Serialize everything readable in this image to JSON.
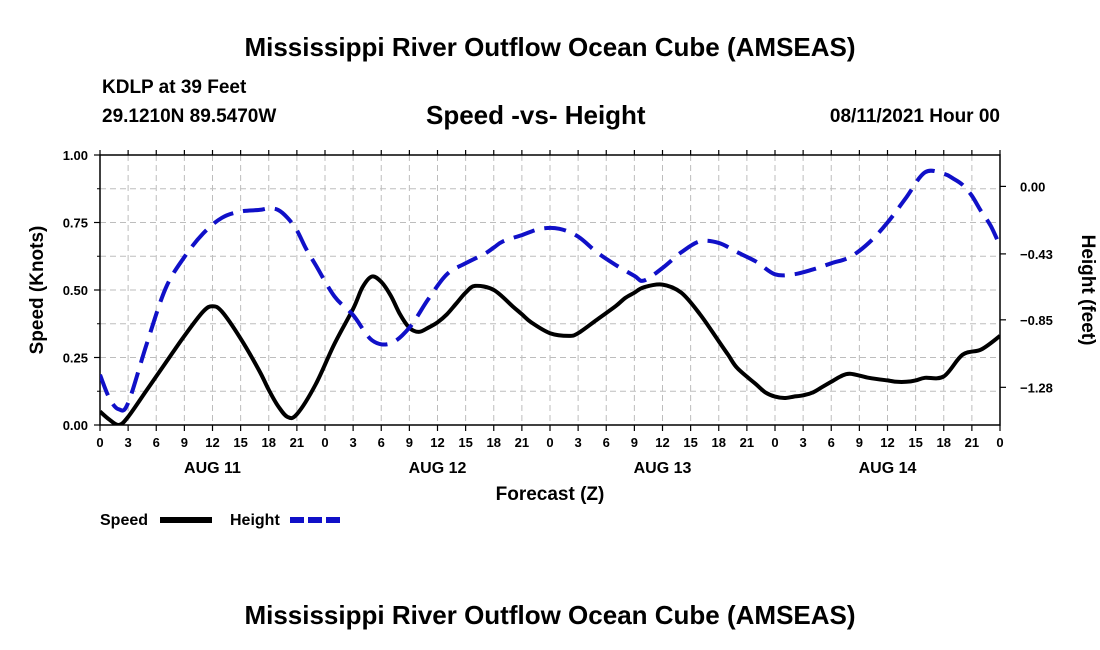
{
  "header": {
    "title_top": "Mississippi River Outflow Ocean Cube (AMSEAS)",
    "title_bottom": "Mississippi River Outflow Ocean Cube (AMSEAS)",
    "station": "KDLP at 39 Feet",
    "coords": "29.1210N  89.5470W",
    "chart_title": "Speed -vs- Height",
    "datetime": "08/11/2021 Hour 00"
  },
  "legend": {
    "speed_label": "Speed",
    "height_label": "Height"
  },
  "colors": {
    "speed": "#000000",
    "height": "#1010c8",
    "grid": "#bdbdbd"
  },
  "chart_data": {
    "type": "line",
    "title": "Speed -vs- Height",
    "xlabel": "Forecast (Z)",
    "ylabel_left": "Speed (Knots)",
    "ylabel_right": "Height (feet)",
    "x_unit": "hours from 08/11/2021 00Z",
    "xlim": [
      0,
      96
    ],
    "ylim_left": [
      0,
      1.0
    ],
    "ylim_right": [
      -1.52,
      0.2
    ],
    "x_tick_values": [
      0,
      3,
      6,
      9,
      12,
      15,
      18,
      21,
      24,
      27,
      30,
      33,
      36,
      39,
      42,
      45,
      48,
      51,
      54,
      57,
      60,
      63,
      66,
      69,
      72,
      75,
      78,
      81,
      84,
      87,
      90,
      93,
      96
    ],
    "x_tick_labels": [
      "0",
      "3",
      "6",
      "9",
      "12",
      "15",
      "18",
      "21",
      "0",
      "3",
      "6",
      "9",
      "12",
      "15",
      "18",
      "21",
      "0",
      "3",
      "6",
      "9",
      "12",
      "15",
      "18",
      "21",
      "0",
      "3",
      "6",
      "9",
      "12",
      "15",
      "18",
      "21",
      "0"
    ],
    "day_labels": [
      {
        "label": "AUG 11",
        "x": 12
      },
      {
        "label": "AUG 12",
        "x": 36
      },
      {
        "label": "AUG 13",
        "x": 60
      },
      {
        "label": "AUG 14",
        "x": 84
      }
    ],
    "y_left_ticks": [
      0.0,
      0.25,
      0.5,
      0.75,
      1.0
    ],
    "y_left_labels": [
      "0.00",
      "0.25",
      "0.50",
      "0.75",
      "1.00"
    ],
    "y_right_ticks": [
      -1.28,
      -0.85,
      -0.43,
      0.0
    ],
    "y_right_labels": [
      "−1.28",
      "−0.85",
      "−0.43",
      "0.00"
    ],
    "grid": true,
    "series": [
      {
        "name": "Speed",
        "axis": "left",
        "style": "solid",
        "x": [
          0,
          1,
          2,
          3,
          5,
          7,
          9,
          11,
          12,
          13,
          15,
          17,
          18,
          19,
          20,
          21,
          23,
          25,
          27,
          28,
          29,
          30,
          31,
          32,
          33,
          34,
          35,
          36,
          37,
          38,
          39,
          40,
          42,
          44,
          45,
          46,
          48,
          50,
          51,
          53,
          55,
          56,
          57,
          58,
          60,
          62,
          64,
          66,
          67,
          68,
          70,
          71,
          72,
          73,
          74,
          75,
          76,
          77,
          78,
          79,
          80,
          82,
          84,
          85,
          86,
          87,
          88,
          90,
          92,
          94,
          96
        ],
        "values": [
          0.05,
          0.02,
          0.0,
          0.03,
          0.13,
          0.23,
          0.33,
          0.42,
          0.44,
          0.42,
          0.32,
          0.2,
          0.13,
          0.07,
          0.03,
          0.04,
          0.15,
          0.3,
          0.43,
          0.51,
          0.55,
          0.53,
          0.48,
          0.41,
          0.36,
          0.345,
          0.36,
          0.38,
          0.41,
          0.45,
          0.49,
          0.515,
          0.5,
          0.44,
          0.41,
          0.38,
          0.34,
          0.33,
          0.34,
          0.39,
          0.44,
          0.47,
          0.49,
          0.51,
          0.52,
          0.49,
          0.41,
          0.31,
          0.26,
          0.21,
          0.15,
          0.12,
          0.105,
          0.1,
          0.105,
          0.11,
          0.12,
          0.14,
          0.16,
          0.18,
          0.19,
          0.175,
          0.165,
          0.16,
          0.16,
          0.165,
          0.175,
          0.18,
          0.26,
          0.28,
          0.33
        ]
      },
      {
        "name": "Height",
        "axis": "right",
        "style": "dashed",
        "x": [
          0,
          1,
          2,
          3,
          5,
          7,
          9,
          11,
          13,
          15,
          17,
          18,
          19,
          20,
          21,
          22,
          23,
          25,
          27,
          29,
          31,
          33,
          35,
          37,
          39,
          41,
          42,
          43,
          45,
          47,
          49,
          51,
          53,
          55,
          57,
          58,
          60,
          62,
          64,
          66,
          68,
          70,
          72,
          74,
          76,
          78,
          80,
          82,
          84,
          86,
          88,
          90,
          91,
          92,
          93,
          94,
          95,
          96
        ],
        "values": [
          -1.2,
          -1.35,
          -1.42,
          -1.38,
          -1.0,
          -0.65,
          -0.45,
          -0.3,
          -0.2,
          -0.16,
          -0.15,
          -0.14,
          -0.15,
          -0.2,
          -0.28,
          -0.4,
          -0.5,
          -0.7,
          -0.82,
          -0.98,
          -1.0,
          -0.9,
          -0.72,
          -0.56,
          -0.49,
          -0.43,
          -0.39,
          -0.35,
          -0.31,
          -0.27,
          -0.27,
          -0.32,
          -0.42,
          -0.5,
          -0.57,
          -0.6,
          -0.52,
          -0.42,
          -0.35,
          -0.36,
          -0.42,
          -0.48,
          -0.56,
          -0.56,
          -0.53,
          -0.49,
          -0.45,
          -0.36,
          -0.23,
          -0.07,
          0.09,
          0.08,
          0.05,
          0.01,
          -0.06,
          -0.16,
          -0.25,
          -0.38
        ]
      }
    ]
  }
}
